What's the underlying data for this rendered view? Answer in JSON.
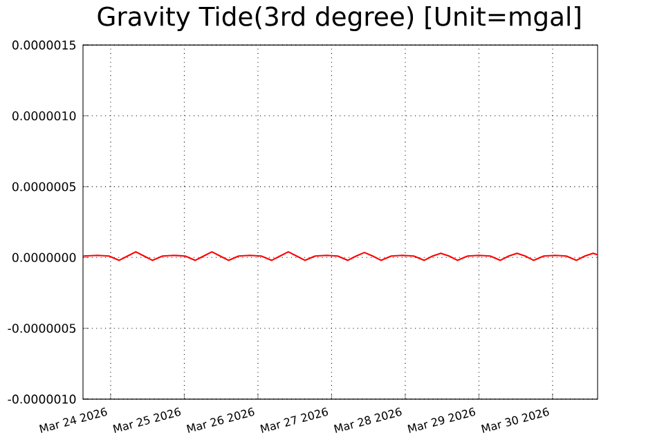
{
  "chart_data": {
    "type": "line",
    "title": "Gravity Tide(3rd degree) [Unit=mgal]",
    "x": [
      "2026-03-23T15:00",
      "2026-03-23T19:48",
      "2026-03-23T23:30",
      "2026-03-24T02:48",
      "2026-03-24T05:30",
      "2026-03-24T08:12",
      "2026-03-24T10:54",
      "2026-03-24T13:36",
      "2026-03-24T16:54",
      "2026-03-24T20:36",
      "2026-03-25T00:18",
      "2026-03-25T03:36",
      "2026-03-25T06:18",
      "2026-03-25T09:00",
      "2026-03-25T11:42",
      "2026-03-25T14:24",
      "2026-03-25T17:42",
      "2026-03-25T21:24",
      "2026-03-26T01:06",
      "2026-03-26T04:30",
      "2026-03-26T07:12",
      "2026-03-26T09:54",
      "2026-03-26T12:36",
      "2026-03-26T15:18",
      "2026-03-26T18:36",
      "2026-03-26T22:18",
      "2026-03-27T02:00",
      "2026-03-27T05:18",
      "2026-03-27T08:00",
      "2026-03-27T10:42",
      "2026-03-27T13:24",
      "2026-03-27T16:06",
      "2026-03-27T19:24",
      "2026-03-27T23:06",
      "2026-03-28T02:48",
      "2026-03-28T06:12",
      "2026-03-28T08:54",
      "2026-03-28T11:36",
      "2026-03-28T14:18",
      "2026-03-28T17:00",
      "2026-03-28T20:18",
      "2026-03-29T00:00",
      "2026-03-29T03:42",
      "2026-03-29T07:00",
      "2026-03-29T09:42",
      "2026-03-29T12:24",
      "2026-03-29T15:06",
      "2026-03-29T17:48",
      "2026-03-29T21:06",
      "2026-03-30T00:48",
      "2026-03-30T04:30",
      "2026-03-30T07:48",
      "2026-03-30T10:30",
      "2026-03-30T13:12",
      "2026-03-30T14:36"
    ],
    "series": [
      {
        "color": "#ff0000",
        "values": [
          1e-08,
          1.5e-08,
          1e-08,
          -2e-08,
          1e-08,
          4e-08,
          1e-08,
          -2e-08,
          1e-08,
          1.5e-08,
          1e-08,
          -2e-08,
          1e-08,
          4e-08,
          1e-08,
          -2e-08,
          1e-08,
          1.5e-08,
          1e-08,
          -2e-08,
          1e-08,
          4e-08,
          1e-08,
          -2e-08,
          1e-08,
          1.5e-08,
          1e-08,
          -2e-08,
          1e-08,
          3.5e-08,
          1e-08,
          -2e-08,
          1e-08,
          1.5e-08,
          1e-08,
          -2e-08,
          1e-08,
          3e-08,
          1e-08,
          -2e-08,
          1e-08,
          1.5e-08,
          1e-08,
          -2e-08,
          1e-08,
          3e-08,
          1e-08,
          -2e-08,
          1e-08,
          1.5e-08,
          1e-08,
          -2e-08,
          1e-08,
          3e-08,
          2e-08
        ]
      }
    ],
    "xlim": [
      "2026-03-23T15:00",
      "2026-03-30T14:40"
    ],
    "xticks": [
      {
        "value": "2026-03-24",
        "label": "Mar 24 2026"
      },
      {
        "value": "2026-03-25",
        "label": "Mar 25 2026"
      },
      {
        "value": "2026-03-26",
        "label": "Mar 26 2026"
      },
      {
        "value": "2026-03-27",
        "label": "Mar 27 2026"
      },
      {
        "value": "2026-03-28",
        "label": "Mar 28 2026"
      },
      {
        "value": "2026-03-29",
        "label": "Mar 29 2026"
      },
      {
        "value": "2026-03-30",
        "label": "Mar 30 2026"
      }
    ],
    "ylim": [
      -1e-06,
      1.5e-06
    ],
    "yticks": [
      {
        "value": -1e-06,
        "label": "-0.0000010"
      },
      {
        "value": -5e-07,
        "label": "-0.0000005"
      },
      {
        "value": 0,
        "label": "0.0000000"
      },
      {
        "value": 5e-07,
        "label": "0.0000005"
      },
      {
        "value": 1e-06,
        "label": "0.0000010"
      },
      {
        "value": 1.5e-06,
        "label": "0.0000015"
      }
    ],
    "grid": true,
    "line_style": "solid"
  }
}
